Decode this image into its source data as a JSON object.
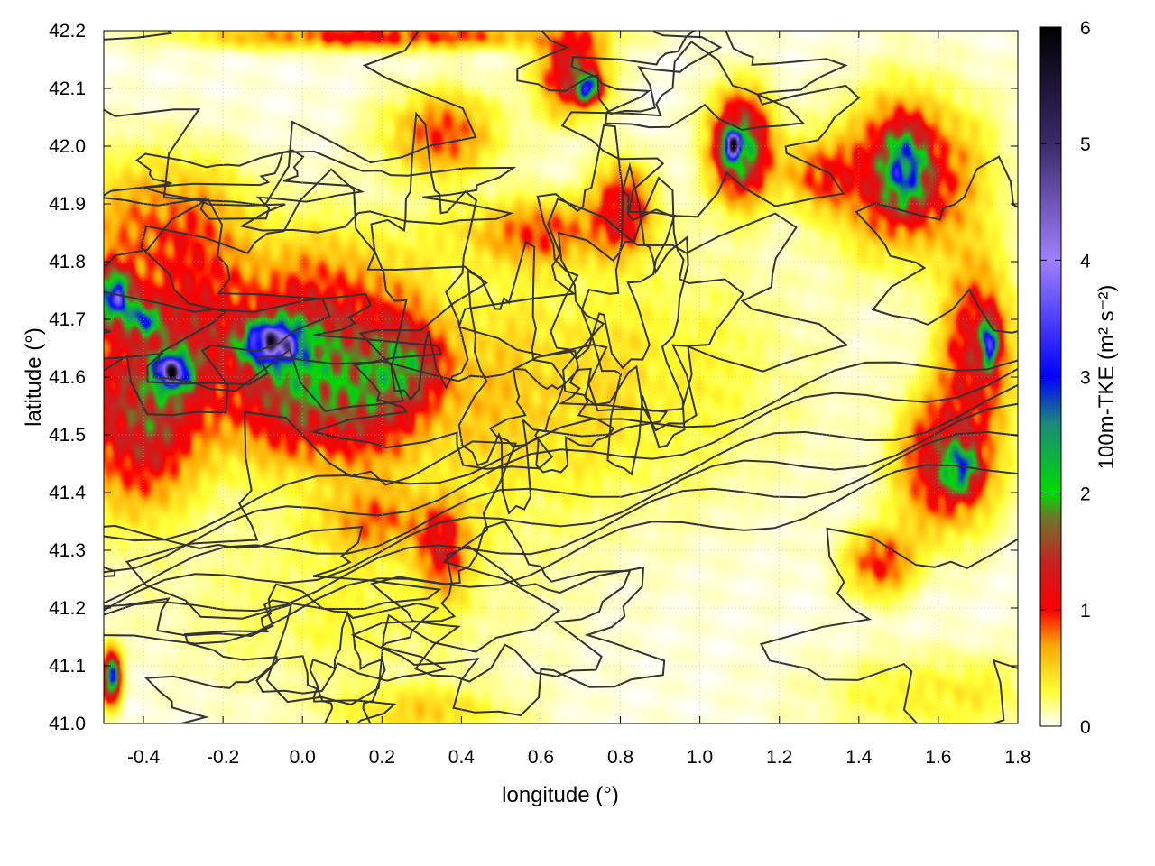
{
  "chart_data": {
    "type": "heatmap",
    "xlabel": "longitude (°)",
    "ylabel": "latitude (°)",
    "colorbar_label": "100m-TKE (m² s⁻²)",
    "xlim": [
      -0.5,
      1.8
    ],
    "ylim": [
      41.0,
      42.2
    ],
    "clim": [
      0,
      6
    ],
    "x_ticks": [
      -0.4,
      -0.2,
      0.0,
      0.2,
      0.4,
      0.6,
      0.8,
      1.0,
      1.2,
      1.4,
      1.6,
      1.8
    ],
    "x_tick_labels": [
      "-0.4",
      "-0.2",
      "0.0",
      "0.2",
      "0.4",
      "0.6",
      "0.8",
      "1.0",
      "1.2",
      "1.4",
      "1.6",
      "1.8"
    ],
    "y_ticks": [
      41.0,
      41.1,
      41.2,
      41.3,
      41.4,
      41.5,
      41.6,
      41.7,
      41.8,
      41.9,
      42.0,
      42.1,
      42.2
    ],
    "y_tick_labels": [
      "41.0",
      "41.1",
      "41.2",
      "41.3",
      "41.4",
      "41.5",
      "41.6",
      "41.7",
      "41.8",
      "41.9",
      "42.0",
      "42.1",
      "42.2"
    ],
    "colorbar_ticks": [
      0,
      1,
      2,
      3,
      4,
      5,
      6
    ],
    "colorbar_tick_labels": [
      "0",
      "1",
      "2",
      "3",
      "4",
      "5",
      "6"
    ],
    "grid": true,
    "colormap": [
      {
        "v": 0.0,
        "color": "#ffffff"
      },
      {
        "v": 0.3,
        "color": "#ffff33"
      },
      {
        "v": 0.7,
        "color": "#ffa500"
      },
      {
        "v": 1.0,
        "color": "#ff0000"
      },
      {
        "v": 1.4,
        "color": "#c82020"
      },
      {
        "v": 1.8,
        "color": "#6a7a2a"
      },
      {
        "v": 2.0,
        "color": "#00dd00"
      },
      {
        "v": 2.6,
        "color": "#1a8a7a"
      },
      {
        "v": 3.0,
        "color": "#0000ff"
      },
      {
        "v": 4.0,
        "color": "#a080ff"
      },
      {
        "v": 5.0,
        "color": "#3a2a6a"
      },
      {
        "v": 6.0,
        "color": "#000000"
      }
    ],
    "hotspots": [
      {
        "lon": -0.42,
        "lat": 41.52,
        "sx": 0.12,
        "sy": 0.1,
        "tke": 1.6
      },
      {
        "lon": -0.2,
        "lat": 41.68,
        "sx": 0.26,
        "sy": 0.1,
        "tke": 1.2
      },
      {
        "lon": 0.05,
        "lat": 41.56,
        "sx": 0.16,
        "sy": 0.08,
        "tke": 1.3
      },
      {
        "lon": -0.08,
        "lat": 41.66,
        "sx": 0.05,
        "sy": 0.025,
        "tke": 4.0
      },
      {
        "lon": -0.33,
        "lat": 41.61,
        "sx": 0.03,
        "sy": 0.02,
        "tke": 4.0
      },
      {
        "lon": -0.47,
        "lat": 41.74,
        "sx": 0.03,
        "sy": 0.03,
        "tke": 3.2
      },
      {
        "lon": -0.4,
        "lat": 41.7,
        "sx": 0.03,
        "sy": 0.02,
        "tke": 2.2
      },
      {
        "lon": -0.35,
        "lat": 41.87,
        "sx": 0.14,
        "sy": 0.08,
        "tke": 0.9
      },
      {
        "lon": 0.12,
        "lat": 41.65,
        "sx": 0.12,
        "sy": 0.12,
        "tke": 0.9
      },
      {
        "lon": 0.28,
        "lat": 41.62,
        "sx": 0.06,
        "sy": 0.05,
        "tke": 1.0
      },
      {
        "lon": 0.35,
        "lat": 42.02,
        "sx": 0.1,
        "sy": 0.05,
        "tke": 1.0
      },
      {
        "lon": 0.68,
        "lat": 42.13,
        "sx": 0.06,
        "sy": 0.05,
        "tke": 1.6
      },
      {
        "lon": 0.72,
        "lat": 42.1,
        "sx": 0.02,
        "sy": 0.015,
        "tke": 3.0
      },
      {
        "lon": 0.8,
        "lat": 41.9,
        "sx": 0.05,
        "sy": 0.05,
        "tke": 1.3
      },
      {
        "lon": 0.6,
        "lat": 41.85,
        "sx": 0.15,
        "sy": 0.04,
        "tke": 0.9
      },
      {
        "lon": 1.1,
        "lat": 42.0,
        "sx": 0.05,
        "sy": 0.06,
        "tke": 2.6
      },
      {
        "lon": 1.08,
        "lat": 42.0,
        "sx": 0.015,
        "sy": 0.015,
        "tke": 4.5
      },
      {
        "lon": 1.52,
        "lat": 41.95,
        "sx": 0.12,
        "sy": 0.09,
        "tke": 1.5
      },
      {
        "lon": 1.52,
        "lat": 41.96,
        "sx": 0.04,
        "sy": 0.05,
        "tke": 2.2
      },
      {
        "lon": 1.7,
        "lat": 41.65,
        "sx": 0.06,
        "sy": 0.1,
        "tke": 1.5
      },
      {
        "lon": 1.73,
        "lat": 41.66,
        "sx": 0.015,
        "sy": 0.03,
        "tke": 3.0
      },
      {
        "lon": 1.62,
        "lat": 41.45,
        "sx": 0.08,
        "sy": 0.08,
        "tke": 1.6
      },
      {
        "lon": 1.66,
        "lat": 41.44,
        "sx": 0.03,
        "sy": 0.03,
        "tke": 2.1
      },
      {
        "lon": 1.45,
        "lat": 41.28,
        "sx": 0.06,
        "sy": 0.04,
        "tke": 1.1
      },
      {
        "lon": 0.35,
        "lat": 41.3,
        "sx": 0.04,
        "sy": 0.05,
        "tke": 1.1
      },
      {
        "lon": 0.5,
        "lat": 41.55,
        "sx": 0.2,
        "sy": 0.15,
        "tke": 0.45
      },
      {
        "lon": 0.9,
        "lat": 41.6,
        "sx": 0.25,
        "sy": 0.15,
        "tke": 0.35
      },
      {
        "lon": 0.1,
        "lat": 41.2,
        "sx": 0.3,
        "sy": 0.1,
        "tke": 0.3
      },
      {
        "lon": 1.6,
        "lat": 41.05,
        "sx": 0.2,
        "sy": 0.05,
        "tke": 0.4
      },
      {
        "lon": 0.3,
        "lat": 41.02,
        "sx": 0.15,
        "sy": 0.03,
        "tke": 0.5
      },
      {
        "lon": -0.48,
        "lat": 41.08,
        "sx": 0.015,
        "sy": 0.03,
        "tke": 3.0
      },
      {
        "lon": 0.2,
        "lat": 42.19,
        "sx": 0.3,
        "sy": 0.015,
        "tke": 1.2
      },
      {
        "lon": 0.2,
        "lat": 41.35,
        "sx": 0.12,
        "sy": 0.04,
        "tke": 0.7
      },
      {
        "lon": 1.3,
        "lat": 41.95,
        "sx": 0.06,
        "sy": 0.04,
        "tke": 1.0
      }
    ]
  }
}
